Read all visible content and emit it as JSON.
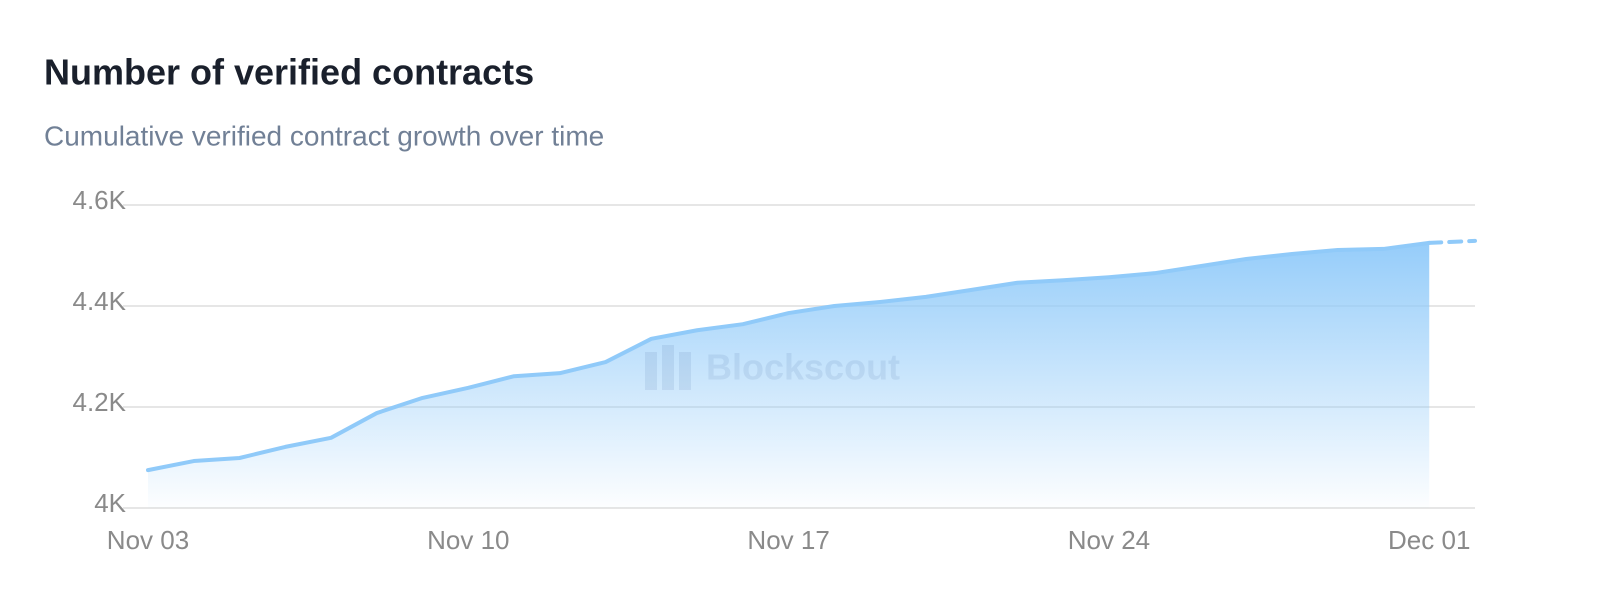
{
  "chart_data": {
    "type": "area",
    "title": "Number of verified contracts",
    "subtitle": "Cumulative verified contract growth over time",
    "watermark": "Blockscout",
    "categories": [
      "Nov 03",
      null,
      null,
      null,
      null,
      null,
      null,
      "Nov 10",
      null,
      null,
      null,
      null,
      null,
      null,
      "Nov 17",
      null,
      null,
      null,
      null,
      null,
      null,
      "Nov 24",
      null,
      null,
      null,
      null,
      null,
      null,
      "Dec 01",
      null
    ],
    "series": [
      {
        "color": "#90caf9",
        "values": [
          4075,
          4093,
          4099,
          4121,
          4139,
          4188,
          4218,
          4238,
          4261,
          4267,
          4289,
          4335,
          4352,
          4364,
          4386,
          4400,
          4408,
          4418,
          4432,
          4446,
          4451,
          4457,
          4465,
          4479,
          4493,
          4503,
          4511,
          4513,
          4525,
          4529
        ]
      }
    ],
    "dashed_last_segment": true,
    "ylim": [
      4000,
      4600
    ],
    "yticks": [
      {
        "value": 4000,
        "label": "4K"
      },
      {
        "value": 4200,
        "label": "4.2K"
      },
      {
        "value": 4400,
        "label": "4.4K"
      },
      {
        "value": 4600,
        "label": "4.6K"
      }
    ],
    "grid": true
  }
}
